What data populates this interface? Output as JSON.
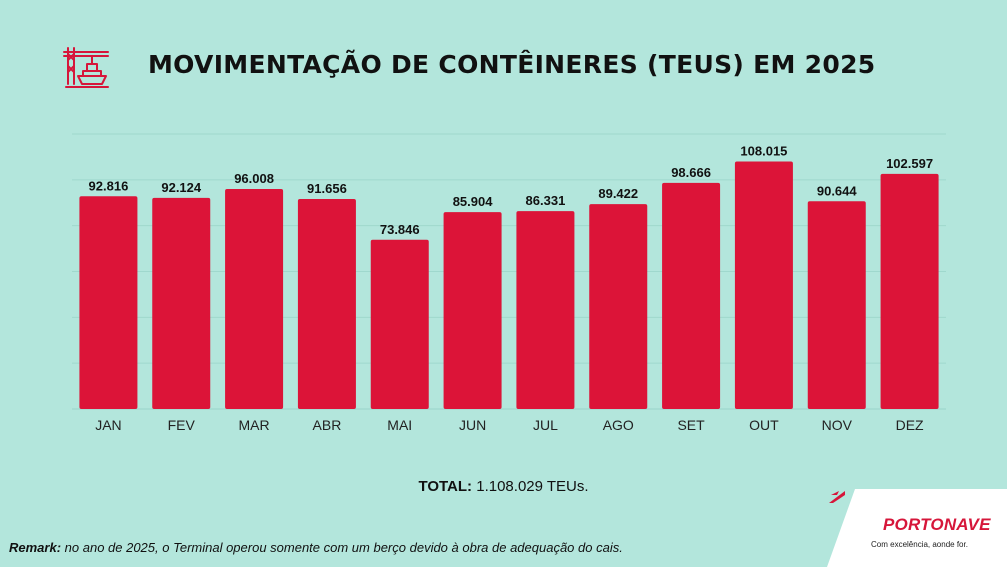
{
  "header": {
    "icon": "port-crane-ship-icon",
    "title": "MOVIMENTAÇÃO DE CONTÊINERES (TEUS) EM 2025"
  },
  "chart_data": {
    "type": "bar",
    "categories": [
      "JAN",
      "FEV",
      "MAR",
      "ABR",
      "MAI",
      "JUN",
      "JUL",
      "AGO",
      "SET",
      "OUT",
      "NOV",
      "DEZ"
    ],
    "values": [
      92816,
      92124,
      96008,
      91656,
      73846,
      85904,
      86331,
      89422,
      98666,
      108015,
      90644,
      102597
    ],
    "value_labels": [
      "92.816",
      "92.124",
      "96.008",
      "91.656",
      "73.846",
      "85.904",
      "86.331",
      "89.422",
      "98.666",
      "108.015",
      "90.644",
      "102.597"
    ],
    "ylim": [
      0,
      120000
    ],
    "grid": true,
    "bar_color": "#dc1438",
    "grid_color": "#9fd8cd"
  },
  "total": {
    "label": "TOTAL:",
    "value": "1.108.029 TEUs."
  },
  "remark": {
    "label": "Remark:",
    "text": "no ano de 2025, o Terminal operou somente com um berço devido à obra de adequação do cais."
  },
  "logo": {
    "name": "PORTONAVE",
    "slogan": "Com excelência, aonde for.",
    "accent": "#d6163a"
  },
  "colors": {
    "background": "#b3e6dc",
    "accent": "#dc1438"
  }
}
